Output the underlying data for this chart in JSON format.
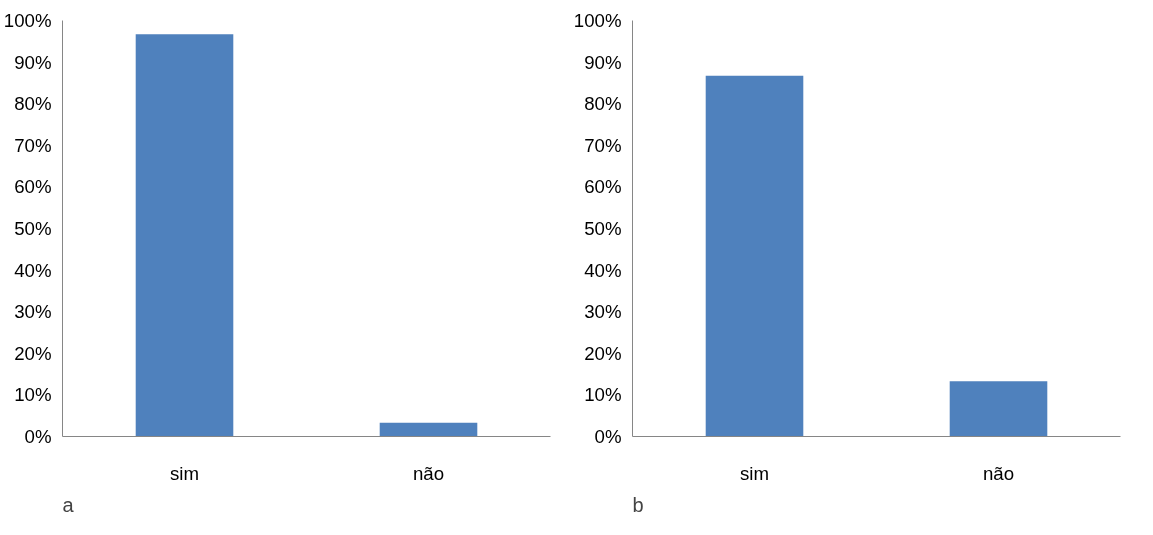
{
  "chart_data": [
    {
      "type": "bar",
      "categories": [
        "sim",
        "não"
      ],
      "values": [
        96.7,
        3.3
      ],
      "color": "#4f81bd",
      "ylim": [
        0,
        100
      ],
      "yticks": [
        {
          "value": 0,
          "label": "0%"
        },
        {
          "value": 10,
          "label": "10%"
        },
        {
          "value": 20,
          "label": "20%"
        },
        {
          "value": 30,
          "label": "30%"
        },
        {
          "value": 40,
          "label": "40%"
        },
        {
          "value": 50,
          "label": "50%"
        },
        {
          "value": 60,
          "label": "60%"
        },
        {
          "value": 70,
          "label": "70%"
        },
        {
          "value": 80,
          "label": "80%"
        },
        {
          "value": 90,
          "label": "90%"
        },
        {
          "value": 100,
          "label": "100%"
        }
      ],
      "grid": false,
      "annotations": [
        "a"
      ]
    },
    {
      "type": "bar",
      "categories": [
        "sim",
        "não"
      ],
      "values": [
        86.7,
        13.3
      ],
      "color": "#4f81bd",
      "ylim": [
        0,
        100
      ],
      "yticks": [
        {
          "value": 0,
          "label": "0%"
        },
        {
          "value": 10,
          "label": "10%"
        },
        {
          "value": 20,
          "label": "20%"
        },
        {
          "value": 30,
          "label": "30%"
        },
        {
          "value": 40,
          "label": "40%"
        },
        {
          "value": 50,
          "label": "50%"
        },
        {
          "value": 60,
          "label": "60%"
        },
        {
          "value": 70,
          "label": "70%"
        },
        {
          "value": 80,
          "label": "80%"
        },
        {
          "value": 90,
          "label": "90%"
        },
        {
          "value": 100,
          "label": "100%"
        }
      ],
      "grid": false,
      "annotations": [
        "b"
      ]
    }
  ]
}
